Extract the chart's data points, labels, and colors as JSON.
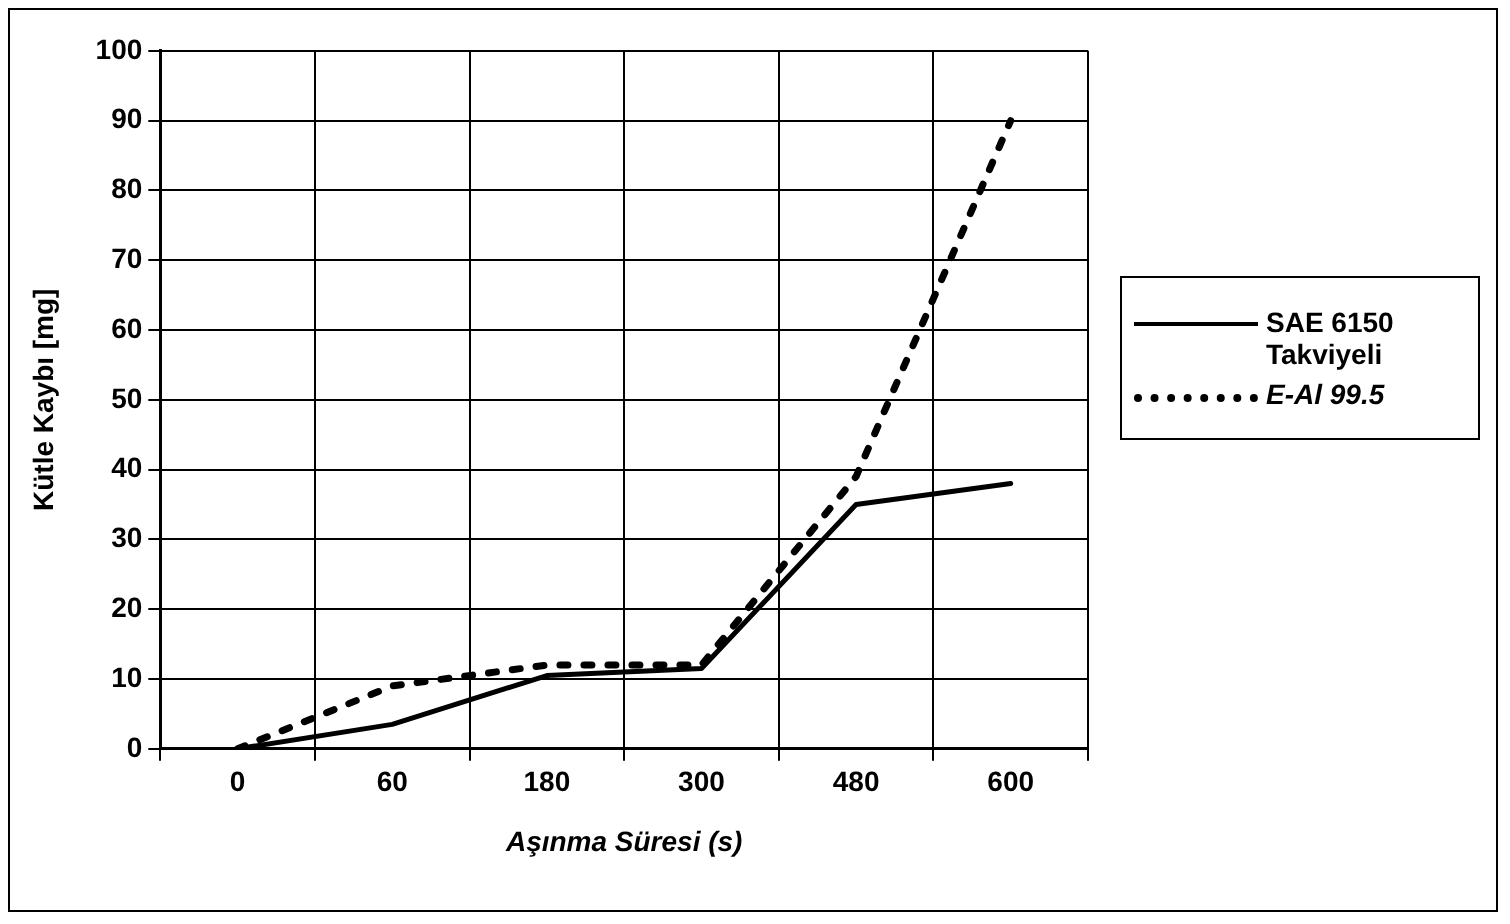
{
  "chart_data": {
    "type": "line",
    "xlabel": "Aşınma Süresi (s)",
    "ylabel": "Kütle Kaybı [mg]",
    "categories": [
      "0",
      "60",
      "180",
      "300",
      "480",
      "600"
    ],
    "series": [
      {
        "name": "SAE 6150 Takviyeli",
        "color": "#000000",
        "line_style": "solid",
        "values": [
          0,
          3.5,
          10.5,
          11.5,
          35,
          38
        ]
      },
      {
        "name": "E-Al 99.5",
        "color": "#000000",
        "line_style": "dotted",
        "values": [
          0,
          9,
          12,
          12,
          39,
          90
        ]
      }
    ],
    "ylim": [
      0,
      100
    ],
    "yticks": [
      0,
      10,
      20,
      30,
      40,
      50,
      60,
      70,
      80,
      90,
      100
    ],
    "grid": true,
    "legend": "right",
    "marker": "none"
  }
}
